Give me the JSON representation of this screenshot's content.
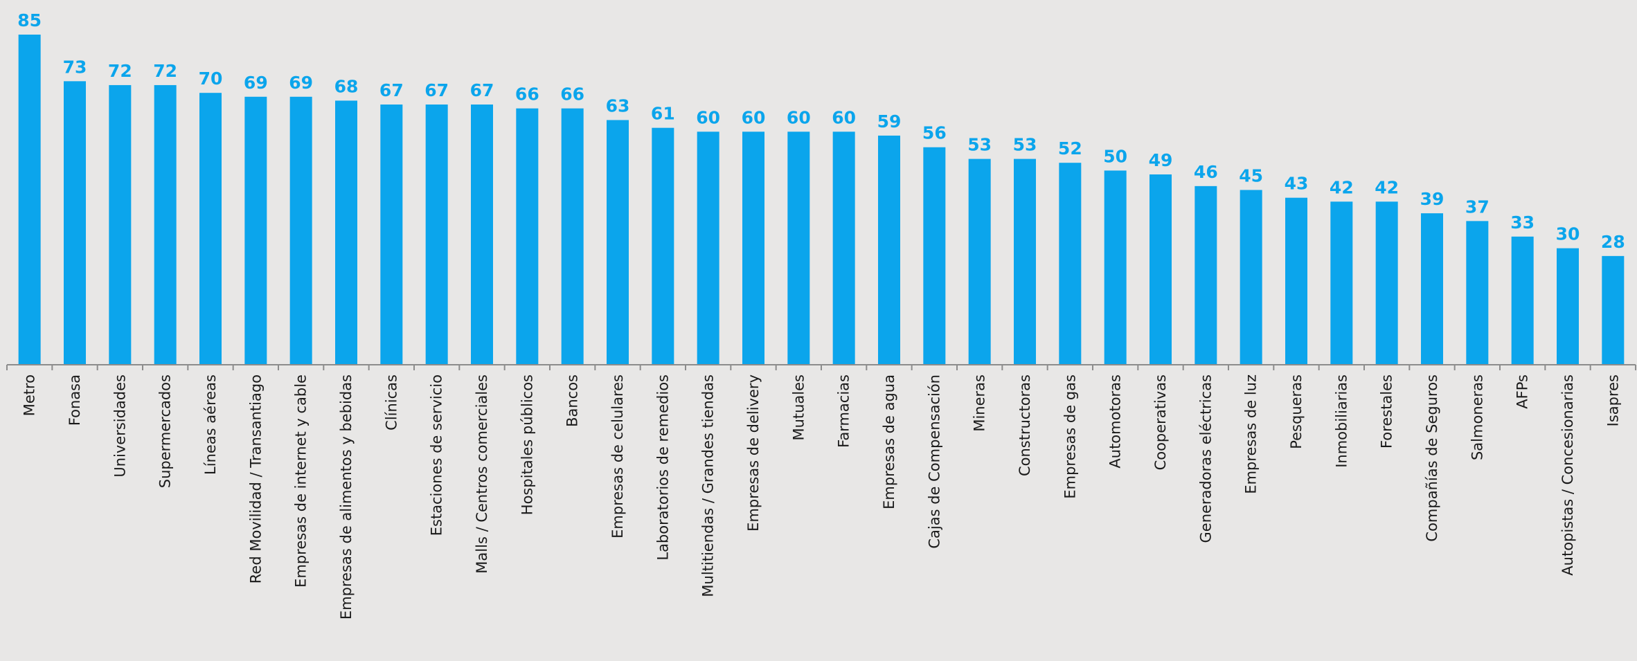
{
  "chart_data": {
    "type": "bar",
    "title": "",
    "xlabel": "",
    "ylabel": "",
    "ylim": [
      0,
      85
    ],
    "grid": false,
    "legend": "none",
    "bar_color": "#0ba5ec",
    "label_color": "#0ba5ec",
    "categories": [
      "Metro",
      "Fonasa",
      "Universidades",
      "Supermercados",
      "Líneas aéreas",
      "Red Movilidad / Transantiago",
      "Empresas de internet y cable",
      "Empresas de alimentos y bebidas",
      "Clínicas",
      "Estaciones de servicio",
      "Malls / Centros comerciales",
      "Hospitales públicos",
      "Bancos",
      "Empresas de celulares",
      "Laboratorios de remedios",
      "Multitiendas / Grandes tiendas",
      "Empresas de delivery",
      "Mutuales",
      "Farmacias",
      "Empresas de agua",
      "Cajas de Compensación",
      "Mineras",
      "Constructoras",
      "Empresas de gas",
      "Automotoras",
      "Cooperativas",
      "Generadoras eléctricas",
      "Empresas de luz",
      "Pesqueras",
      "Inmobiliarias",
      "Forestales",
      "Compañías de Seguros",
      "Salmoneras",
      "AFPs",
      "Autopistas / Concesionarias",
      "Isapres"
    ],
    "values": [
      85,
      73,
      72,
      72,
      70,
      69,
      69,
      68,
      67,
      67,
      67,
      66,
      66,
      63,
      61,
      60,
      60,
      60,
      60,
      59,
      56,
      53,
      53,
      52,
      50,
      49,
      46,
      45,
      43,
      42,
      42,
      39,
      37,
      33,
      30,
      28
    ]
  }
}
